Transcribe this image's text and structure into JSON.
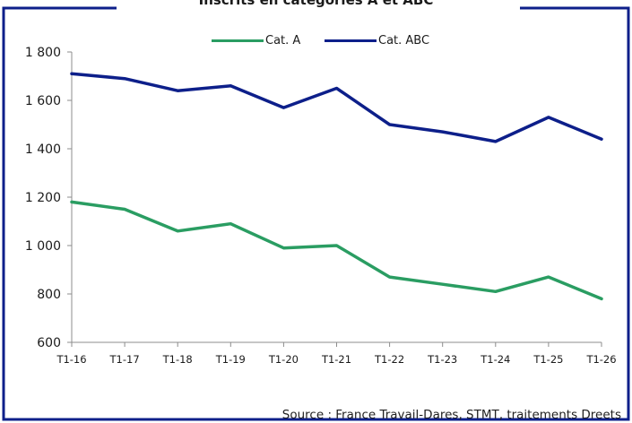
{
  "chart_data": {
    "type": "line",
    "title": "Inscrits en catégories A et ABC",
    "source": "Source : France Travail-Dares, STMT, traitements Dreets",
    "categories": [
      "T1-16",
      "T1-17",
      "T1-18",
      "T1-19",
      "T1-20",
      "T1-21",
      "T1-22",
      "T1-23",
      "T1-24",
      "T1-25",
      "T1-26"
    ],
    "series": [
      {
        "name": "Cat. A",
        "color": "#2a9d62",
        "values": [
          1180,
          1150,
          1060,
          1090,
          990,
          1000,
          870,
          840,
          810,
          870,
          780
        ]
      },
      {
        "name": "Cat. ABC",
        "color": "#0d1f8a",
        "values": [
          1710,
          1690,
          1640,
          1660,
          1570,
          1650,
          1500,
          1470,
          1430,
          1530,
          1440
        ]
      }
    ],
    "ylim": [
      600,
      1800
    ],
    "yticks": [
      600,
      800,
      1000,
      1200,
      1400,
      1600,
      1800
    ],
    "ytick_labels": [
      "600",
      "800",
      "1 000",
      "1 200",
      "1 400",
      "1 600",
      "1 800"
    ],
    "grid": false,
    "legend_position": "top",
    "frame_color": "#0d1f8a"
  }
}
